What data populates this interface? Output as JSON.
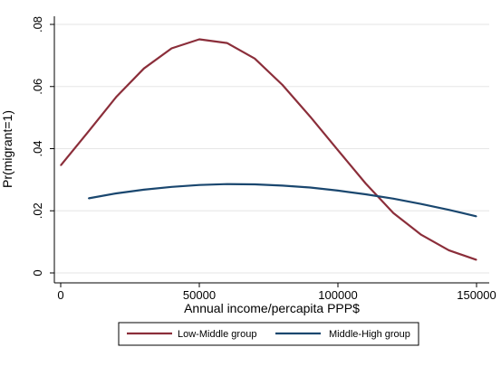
{
  "chart_data": {
    "type": "line",
    "title": "",
    "xlabel": "Annual income/percapita PPP$",
    "ylabel": "Pr(migrant=1)",
    "xlim": [
      0,
      150000
    ],
    "ylim": [
      0,
      0.08
    ],
    "x_ticks": [
      0,
      50000,
      100000,
      150000
    ],
    "x_tick_labels": [
      "0",
      "50000",
      "100000",
      "150000"
    ],
    "y_ticks": [
      0,
      0.02,
      0.04,
      0.06,
      0.08
    ],
    "y_tick_labels": [
      "0",
      ".02",
      ".04",
      ".06",
      ".08"
    ],
    "grid": "horizontal",
    "legend_position": "bottom",
    "series": [
      {
        "name": "Low-Middle group",
        "color": "#8B2E3A",
        "x": [
          0,
          10000,
          20000,
          30000,
          40000,
          50000,
          60000,
          70000,
          80000,
          90000,
          100000,
          110000,
          120000,
          130000,
          140000,
          150000
        ],
        "y": [
          0.0346,
          0.0455,
          0.0566,
          0.0658,
          0.0723,
          0.0752,
          0.074,
          0.069,
          0.0605,
          0.0503,
          0.0395,
          0.0288,
          0.0193,
          0.0123,
          0.0073,
          0.0042
        ]
      },
      {
        "name": "Middle-High group",
        "color": "#1A476F",
        "x": [
          10000,
          20000,
          30000,
          40000,
          50000,
          60000,
          70000,
          80000,
          90000,
          100000,
          110000,
          120000,
          130000,
          140000,
          150000
        ],
        "y": [
          0.024,
          0.0256,
          0.0268,
          0.0277,
          0.0283,
          0.0286,
          0.0285,
          0.0281,
          0.0275,
          0.0265,
          0.0253,
          0.0239,
          0.0222,
          0.0203,
          0.0182
        ]
      }
    ]
  }
}
